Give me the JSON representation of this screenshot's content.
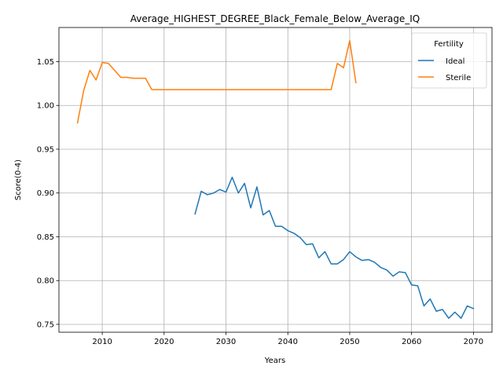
{
  "chart_data": {
    "type": "line",
    "title": "Average_HIGHEST_DEGREE_Black_Female_Below_Average_IQ",
    "xlabel": "Years",
    "ylabel": "Score(0-4)",
    "xlim": [
      2003,
      2073
    ],
    "ylim": [
      0.741,
      1.089
    ],
    "xticks": [
      2010,
      2020,
      2030,
      2040,
      2050,
      2060,
      2070
    ],
    "yticks": [
      0.75,
      0.8,
      0.85,
      0.9,
      0.95,
      1.0,
      1.05
    ],
    "ytick_labels": [
      "0.75",
      "0.80",
      "0.85",
      "0.90",
      "0.95",
      "1.00",
      "1.05"
    ],
    "grid": true,
    "legend": {
      "title": "Fertility",
      "placement": "top-right"
    },
    "series": [
      {
        "name": "Ideal",
        "color": "#1f77b4",
        "x": [
          2025,
          2026,
          2027,
          2028,
          2029,
          2030,
          2031,
          2032,
          2033,
          2034,
          2035,
          2036,
          2037,
          2038,
          2039,
          2040,
          2041,
          2042,
          2043,
          2044,
          2045,
          2046,
          2047,
          2048,
          2049,
          2050,
          2051,
          2052,
          2053,
          2054,
          2055,
          2056,
          2057,
          2058,
          2059,
          2060,
          2061,
          2062,
          2063,
          2064,
          2065,
          2066,
          2067,
          2068,
          2069,
          2070
        ],
        "y": [
          0.876,
          0.902,
          0.898,
          0.9,
          0.904,
          0.901,
          0.918,
          0.9,
          0.911,
          0.883,
          0.907,
          0.875,
          0.88,
          0.862,
          0.862,
          0.857,
          0.854,
          0.849,
          0.841,
          0.842,
          0.826,
          0.833,
          0.819,
          0.819,
          0.824,
          0.833,
          0.827,
          0.823,
          0.824,
          0.821,
          0.815,
          0.812,
          0.805,
          0.81,
          0.809,
          0.795,
          0.794,
          0.771,
          0.779,
          0.765,
          0.767,
          0.757,
          0.764,
          0.757,
          0.771,
          0.768
        ]
      },
      {
        "name": "Sterile",
        "color": "#ff7f0e",
        "x": [
          2006,
          2007,
          2008,
          2009,
          2010,
          2011,
          2012,
          2013,
          2014,
          2015,
          2016,
          2017,
          2018,
          2019,
          2020,
          2025,
          2030,
          2035,
          2040,
          2045,
          2047,
          2048,
          2049,
          2050,
          2051
        ],
        "y": [
          0.98,
          1.017,
          1.04,
          1.029,
          1.049,
          1.048,
          1.04,
          1.032,
          1.032,
          1.031,
          1.031,
          1.031,
          1.018,
          1.018,
          1.018,
          1.018,
          1.018,
          1.018,
          1.018,
          1.018,
          1.018,
          1.048,
          1.043,
          1.074,
          1.026
        ]
      }
    ]
  }
}
